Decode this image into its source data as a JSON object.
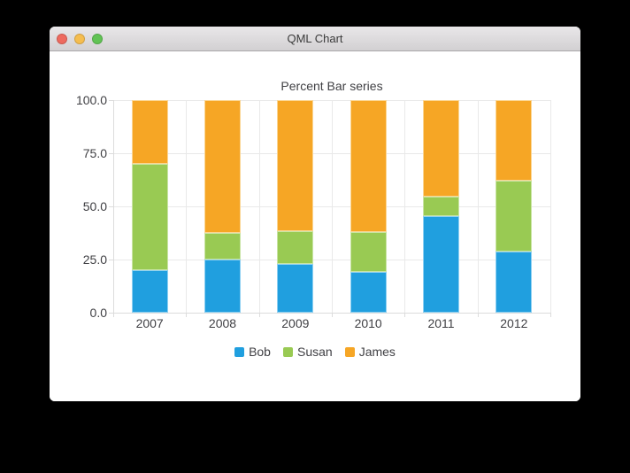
{
  "window": {
    "title": "QML Chart",
    "controls": [
      {
        "name": "close",
        "color": "#ee6a5f"
      },
      {
        "name": "minimize",
        "color": "#f5bd4f"
      },
      {
        "name": "zoom",
        "color": "#61c354"
      }
    ]
  },
  "chart_data": {
    "type": "bar",
    "stacking": "percent",
    "title": "Percent Bar series",
    "categories": [
      "2007",
      "2008",
      "2009",
      "2010",
      "2011",
      "2012"
    ],
    "series": [
      {
        "name": "Bob",
        "color": "#209fdf",
        "border_color": "#8ed0f2",
        "values": [
          2,
          2,
          3,
          4,
          5,
          6
        ]
      },
      {
        "name": "Susan",
        "color": "#99ca53",
        "border_color": "#c9e4a4",
        "values": [
          5,
          1,
          2,
          4,
          1,
          7
        ]
      },
      {
        "name": "James",
        "color": "#f6a625",
        "border_color": "#fbd694",
        "values": [
          3,
          5,
          8,
          13,
          5,
          8
        ]
      }
    ],
    "y_axis": {
      "tick_labels_top_to_bottom": [
        "100.0",
        "75.0",
        "50.0",
        "25.0",
        "0.0"
      ],
      "min": 0,
      "max": 100
    },
    "grid": true,
    "legend_position": "bottom",
    "colors": {
      "gridline": "#e9e9e9",
      "axis_line": "#dcdcdc",
      "label": "#404044"
    }
  }
}
